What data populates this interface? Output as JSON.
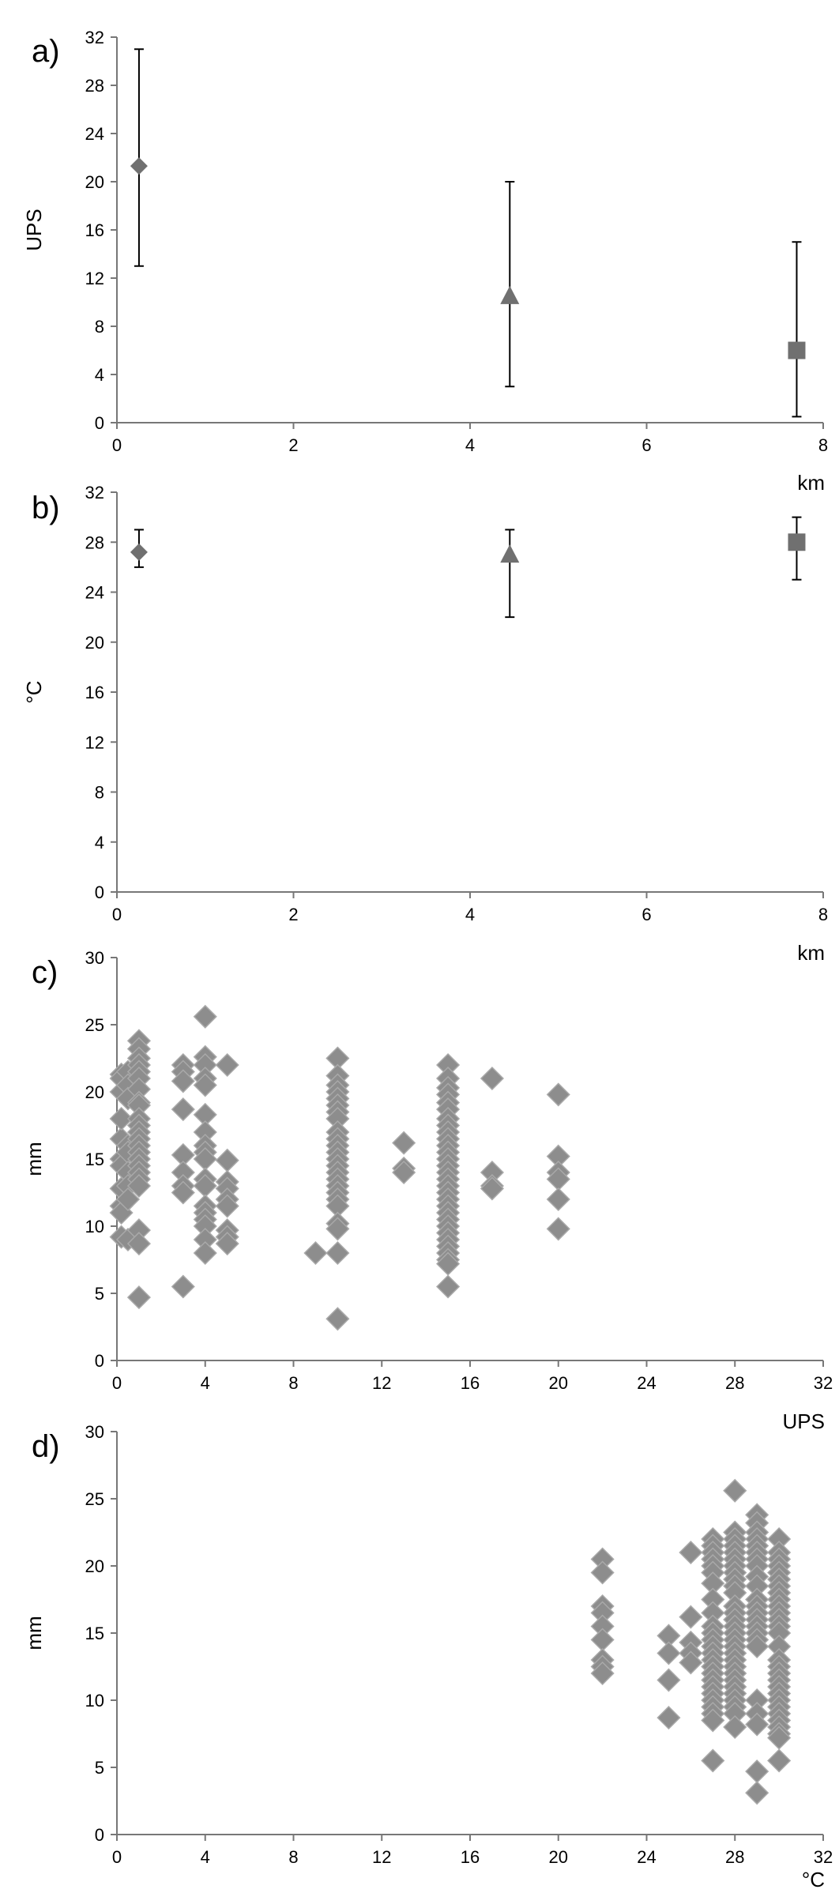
{
  "chart_data": [
    {
      "panel": "a)",
      "type": "scatter",
      "xlabel": "km",
      "ylabel": "UPS",
      "xlim": [
        0,
        8
      ],
      "ylim": [
        0,
        32
      ],
      "xticks": [
        0,
        2,
        4,
        6,
        8
      ],
      "yticks": [
        0,
        4,
        8,
        12,
        16,
        20,
        24,
        28,
        32
      ],
      "points": [
        {
          "x": 0.25,
          "y": 21.3,
          "low": 13,
          "high": 31,
          "marker": "diamond"
        },
        {
          "x": 4.45,
          "y": 10.5,
          "low": 3,
          "high": 20,
          "marker": "triangle"
        },
        {
          "x": 7.7,
          "y": 6.0,
          "low": 0.5,
          "high": 15,
          "marker": "square"
        }
      ]
    },
    {
      "panel": "b)",
      "type": "scatter",
      "xlabel": "km",
      "ylabel": "°C",
      "xlim": [
        0,
        8
      ],
      "ylim": [
        0,
        32
      ],
      "xticks": [
        0,
        2,
        4,
        6,
        8
      ],
      "yticks": [
        0,
        4,
        8,
        12,
        16,
        20,
        24,
        28,
        32
      ],
      "points": [
        {
          "x": 0.25,
          "y": 27.2,
          "low": 26,
          "high": 29,
          "marker": "diamond"
        },
        {
          "x": 4.45,
          "y": 27.0,
          "low": 22,
          "high": 29,
          "marker": "triangle"
        },
        {
          "x": 7.7,
          "y": 28.0,
          "low": 25,
          "high": 30,
          "marker": "square"
        }
      ]
    },
    {
      "panel": "c)",
      "type": "scatter",
      "xlabel": "UPS",
      "ylabel": "mm",
      "xlim": [
        0,
        32
      ],
      "ylim": [
        0,
        30
      ],
      "xticks": [
        0,
        4,
        8,
        12,
        16,
        20,
        24,
        28,
        32
      ],
      "yticks": [
        0,
        5,
        10,
        15,
        20,
        25,
        30
      ],
      "groups": [
        {
          "x": 0.2,
          "y": [
            21.3,
            20.0,
            16.5,
            15.0,
            14.5,
            12.8,
            11.5,
            11.0,
            9.2,
            21.0,
            18.0
          ]
        },
        {
          "x": 0.5,
          "y": [
            21.5,
            20.5,
            19.5,
            16.0,
            15.5,
            14.0,
            13.0,
            12.0,
            9.0
          ]
        },
        {
          "x": 1.0,
          "y": [
            23.8,
            23.2,
            22.5,
            22.0,
            21.5,
            21.0,
            20.2,
            19.2,
            19.0,
            18.0,
            17.5,
            17.0,
            16.5,
            16.0,
            15.5,
            15.0,
            14.5,
            14.0,
            13.5,
            13.0,
            9.7,
            8.7,
            4.7
          ]
        },
        {
          "x": 3.0,
          "y": [
            22.0,
            21.5,
            20.8,
            18.7,
            15.3,
            14.0,
            13.0,
            12.5,
            5.5
          ]
        },
        {
          "x": 4.0,
          "y": [
            25.6,
            22.6,
            22.0,
            21.0,
            20.5,
            18.3,
            17.0,
            16.0,
            15.5,
            15.0,
            13.5,
            13.0,
            11.5,
            11.0,
            10.5,
            10.0,
            9.0,
            8.0
          ]
        },
        {
          "x": 5.0,
          "y": [
            22.0,
            14.9,
            13.3,
            12.8,
            12.0,
            11.5,
            9.7,
            9.2,
            8.7
          ]
        },
        {
          "x": 9.0,
          "y": [
            8.0
          ]
        },
        {
          "x": 10.0,
          "y": [
            22.5,
            21.2,
            20.5,
            20.0,
            19.5,
            19.0,
            18.5,
            18.0,
            17.0,
            16.5,
            16.0,
            15.5,
            15.0,
            14.5,
            14.0,
            13.5,
            13.0,
            12.5,
            12.0,
            11.5,
            10.2,
            9.8,
            8.0,
            3.1
          ]
        },
        {
          "x": 13.0,
          "y": [
            16.2,
            14.3,
            14.0
          ]
        },
        {
          "x": 15.0,
          "y": [
            22.0,
            21.0,
            20.3,
            19.8,
            19.2,
            18.7,
            18.0,
            17.5,
            17.0,
            16.5,
            16.0,
            15.5,
            15.0,
            14.5,
            14.0,
            13.5,
            13.0,
            12.5,
            12.0,
            11.5,
            11.0,
            10.5,
            10.0,
            9.5,
            9.0,
            8.5,
            8.0,
            7.5,
            7.2,
            5.5
          ]
        },
        {
          "x": 17.0,
          "y": [
            21.0,
            14.0,
            13.0,
            12.8
          ]
        },
        {
          "x": 20.0,
          "y": [
            19.8,
            15.2,
            14.0,
            13.5,
            12.0,
            9.8
          ]
        }
      ]
    },
    {
      "panel": "d)",
      "type": "scatter",
      "xlabel": "°C",
      "ylabel": "mm",
      "xlim": [
        0,
        32
      ],
      "ylim": [
        0,
        30
      ],
      "xticks": [
        0,
        4,
        8,
        12,
        16,
        20,
        24,
        28,
        32
      ],
      "yticks": [
        0,
        5,
        10,
        15,
        20,
        25,
        30
      ],
      "groups": [
        {
          "x": 22.0,
          "y": [
            20.5,
            19.5,
            17.0,
            16.5,
            15.5,
            14.5,
            13.0,
            12.5,
            12.0
          ]
        },
        {
          "x": 25.0,
          "y": [
            14.8,
            13.5,
            11.5,
            8.7
          ]
        },
        {
          "x": 26.0,
          "y": [
            21.0,
            16.2,
            14.3,
            13.5,
            12.8
          ]
        },
        {
          "x": 27.0,
          "y": [
            22.0,
            21.5,
            21.0,
            20.5,
            20.0,
            19.5,
            18.7,
            17.5,
            16.5,
            15.5,
            15.0,
            14.5,
            14.0,
            13.5,
            13.0,
            12.5,
            12.0,
            11.5,
            11.0,
            10.5,
            10.0,
            9.5,
            9.0,
            8.5,
            5.5
          ]
        },
        {
          "x": 28.0,
          "y": [
            25.6,
            22.5,
            22.0,
            21.5,
            21.0,
            20.5,
            20.0,
            19.5,
            19.0,
            18.5,
            18.0,
            17.0,
            16.5,
            16.0,
            15.5,
            15.0,
            14.5,
            14.0,
            13.5,
            13.0,
            12.5,
            12.0,
            11.5,
            11.0,
            10.5,
            10.0,
            9.5,
            9.0,
            8.0
          ]
        },
        {
          "x": 29.0,
          "y": [
            23.8,
            23.2,
            22.5,
            22.0,
            21.5,
            21.0,
            20.5,
            20.0,
            19.2,
            18.5,
            17.5,
            17.0,
            16.5,
            16.0,
            15.5,
            15.0,
            14.5,
            14.0,
            10.0,
            9.0,
            8.2,
            4.7,
            3.1
          ]
        },
        {
          "x": 30.0,
          "y": [
            22.0,
            21.0,
            20.5,
            20.0,
            19.5,
            19.0,
            18.5,
            18.0,
            17.5,
            17.0,
            16.5,
            16.0,
            15.5,
            15.0,
            14.0,
            13.0,
            12.5,
            12.0,
            11.5,
            11.0,
            10.5,
            10.0,
            9.5,
            9.0,
            8.5,
            8.0,
            7.5,
            7.2,
            5.5
          ]
        }
      ]
    }
  ]
}
